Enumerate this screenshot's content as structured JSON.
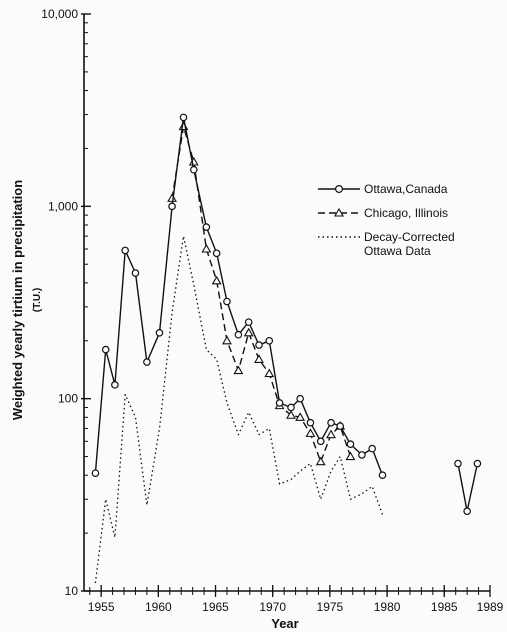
{
  "chart_data": {
    "type": "line",
    "title": "",
    "xlabel": "Year",
    "ylabel": "Weighted yearly tirtium in precipitation",
    "yunit": "(T.U.)",
    "yscale": "log",
    "ylim": [
      10,
      10000
    ],
    "xlim": [
      1953.5,
      1989
    ],
    "xticks": [
      1955,
      1960,
      1965,
      1970,
      1975,
      1980,
      1985,
      1989
    ],
    "xtick_labels": [
      "1955",
      "1960",
      "1965",
      "1970",
      "1975",
      "1980",
      "1985",
      "1989"
    ],
    "yticks": [
      10,
      100,
      1000,
      10000
    ],
    "ytick_labels": [
      "10",
      "100",
      "1,000",
      "10,000"
    ],
    "legend_position": "right",
    "series": [
      {
        "name": "Ottawa,Canada",
        "style": "solid",
        "marker": "circle",
        "segments": [
          [
            [
              1954.5,
              41
            ],
            [
              1955.4,
              180
            ],
            [
              1956.2,
              118
            ],
            [
              1957.1,
              590
            ],
            [
              1958.0,
              450
            ],
            [
              1959.0,
              155
            ],
            [
              1960.1,
              220
            ],
            [
              1961.2,
              1000
            ],
            [
              1962.2,
              2900
            ],
            [
              1963.1,
              1550
            ],
            [
              1964.2,
              780
            ],
            [
              1965.1,
              570
            ],
            [
              1966.0,
              320
            ],
            [
              1967.0,
              215
            ],
            [
              1967.9,
              250
            ],
            [
              1968.8,
              190
            ],
            [
              1969.7,
              200
            ],
            [
              1970.6,
              95
            ],
            [
              1971.6,
              90
            ],
            [
              1972.4,
              100
            ],
            [
              1973.3,
              75
            ],
            [
              1974.2,
              60
            ],
            [
              1975.1,
              75
            ],
            [
              1975.9,
              72
            ],
            [
              1976.8,
              58
            ],
            [
              1977.8,
              51
            ],
            [
              1978.7,
              55
            ],
            [
              1979.6,
              40
            ]
          ],
          [
            [
              1986.2,
              46
            ],
            [
              1987.0,
              26
            ],
            [
              1987.9,
              46
            ]
          ]
        ]
      },
      {
        "name": "Chicago, Illinois",
        "style": "dashed",
        "marker": "triangle",
        "segments": [
          [
            [
              1961.2,
              1100
            ],
            [
              1962.2,
              2600
            ],
            [
              1963.1,
              1700
            ],
            [
              1964.2,
              600
            ],
            [
              1965.1,
              410
            ],
            [
              1966.0,
              200
            ],
            [
              1967.0,
              140
            ],
            [
              1967.9,
              220
            ],
            [
              1968.8,
              160
            ],
            [
              1969.7,
              135
            ],
            [
              1970.6,
              92
            ],
            [
              1971.6,
              82
            ],
            [
              1972.4,
              80
            ],
            [
              1973.3,
              66
            ],
            [
              1974.2,
              47
            ],
            [
              1975.1,
              65
            ],
            [
              1975.9,
              72
            ],
            [
              1976.8,
              50
            ]
          ]
        ]
      },
      {
        "name": "Decay-Corrected\nOttawa Data",
        "name_lines": [
          "Decay-Corrected",
          "Ottawa Data"
        ],
        "style": "dotted",
        "marker": "none",
        "segments": [
          [
            [
              1954.5,
              11
            ],
            [
              1955.4,
              30
            ],
            [
              1956.2,
              19
            ],
            [
              1957.1,
              105
            ],
            [
              1958.0,
              80
            ],
            [
              1959.0,
              28
            ],
            [
              1960.1,
              70
            ],
            [
              1961.2,
              280
            ],
            [
              1962.2,
              700
            ],
            [
              1963.1,
              390
            ],
            [
              1964.2,
              180
            ],
            [
              1965.1,
              160
            ],
            [
              1966.0,
              95
            ],
            [
              1967.0,
              65
            ],
            [
              1967.9,
              85
            ],
            [
              1968.8,
              65
            ],
            [
              1969.7,
              70
            ],
            [
              1970.6,
              36
            ],
            [
              1971.6,
              38
            ],
            [
              1972.4,
              42
            ],
            [
              1973.3,
              46
            ],
            [
              1974.2,
              30
            ],
            [
              1975.1,
              42
            ],
            [
              1975.9,
              50
            ],
            [
              1976.8,
              30
            ],
            [
              1977.8,
              32
            ],
            [
              1978.7,
              35
            ],
            [
              1979.6,
              25
            ]
          ]
        ]
      }
    ]
  }
}
